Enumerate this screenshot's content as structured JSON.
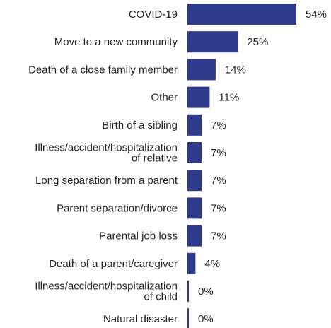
{
  "chart_data": {
    "type": "bar",
    "orientation": "horizontal",
    "categories": [
      [
        "COVID-19"
      ],
      [
        "Move to a new community"
      ],
      [
        "Death of a close family member"
      ],
      [
        "Other"
      ],
      [
        "Birth of a sibling"
      ],
      [
        "Illness/accident/hospitalization",
        "of relative"
      ],
      [
        "Long separation from a parent"
      ],
      [
        "Parent separation/divorce"
      ],
      [
        "Parental job loss"
      ],
      [
        "Death of a parent/caregiver"
      ],
      [
        "Illness/accident/hospitalization",
        "of child"
      ],
      [
        "Natural disaster"
      ]
    ],
    "values": [
      54,
      25,
      14,
      11,
      7,
      7,
      7,
      7,
      7,
      4,
      0,
      0
    ],
    "value_labels": [
      "54%",
      "25%",
      "14%",
      "11%",
      "7%",
      "7%",
      "7%",
      "7%",
      "7%",
      "4%",
      "0%",
      "0%"
    ],
    "xlim": [
      0,
      54
    ],
    "bar_color": "#2e3a8c",
    "grid": false
  }
}
